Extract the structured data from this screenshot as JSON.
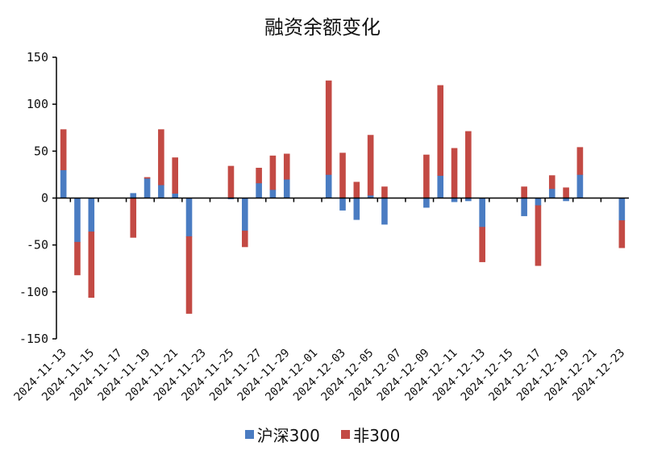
{
  "chart_data": {
    "type": "bar",
    "stacked": true,
    "title": "融资余额变化",
    "xlabel": "",
    "ylabel": "",
    "ylim": [
      -150,
      150
    ],
    "yticks": [
      150,
      100,
      50,
      0,
      -50,
      -100,
      -150
    ],
    "grid": false,
    "legend_position": "bottom",
    "categories": [
      "2024-11-13",
      "2024-11-14",
      "2024-11-15",
      "2024-11-16",
      "2024-11-17",
      "2024-11-18",
      "2024-11-19",
      "2024-11-20",
      "2024-11-21",
      "2024-11-22",
      "2024-11-23",
      "2024-11-24",
      "2024-11-25",
      "2024-11-26",
      "2024-11-27",
      "2024-11-28",
      "2024-11-29",
      "2024-11-30",
      "2024-12-01",
      "2024-12-02",
      "2024-12-03",
      "2024-12-04",
      "2024-12-05",
      "2024-12-06",
      "2024-12-07",
      "2024-12-08",
      "2024-12-09",
      "2024-12-10",
      "2024-12-11",
      "2024-12-12",
      "2024-12-13",
      "2024-12-14",
      "2024-12-15",
      "2024-12-16",
      "2024-12-17",
      "2024-12-18",
      "2024-12-19",
      "2024-12-20",
      "2024-12-21",
      "2024-12-22",
      "2024-12-23"
    ],
    "series": [
      {
        "name": "沪深300",
        "color": "#4a7cc2",
        "values": [
          30,
          -47,
          -36,
          null,
          null,
          5,
          21,
          14,
          5,
          -41,
          null,
          null,
          -1,
          -35,
          16,
          9,
          20,
          null,
          null,
          25,
          -13,
          -23,
          3,
          -28,
          null,
          null,
          -10,
          24,
          -4,
          -3,
          -31,
          null,
          null,
          -19,
          -8,
          10,
          -3,
          25,
          null,
          null,
          -24
        ]
      },
      {
        "name": "非300",
        "color": "#c34a44",
        "values": [
          43,
          -35,
          -70,
          null,
          null,
          -42,
          1,
          59,
          38,
          -82,
          null,
          null,
          34,
          -17,
          16,
          36,
          27,
          null,
          null,
          100,
          48,
          17,
          64,
          12,
          null,
          null,
          46,
          96,
          53,
          71,
          -37,
          null,
          null,
          12,
          -64,
          14,
          11,
          29,
          null,
          null,
          -29
        ]
      }
    ]
  }
}
